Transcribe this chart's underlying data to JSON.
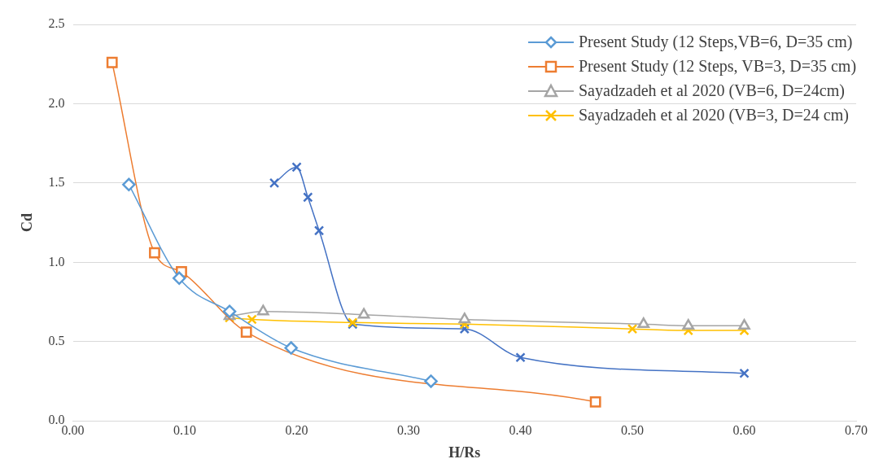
{
  "chart_data": {
    "type": "line",
    "xlabel": "H/Rs",
    "ylabel": "Cd",
    "xlim": [
      0,
      0.7
    ],
    "ylim": [
      0,
      2.5
    ],
    "xticks": [
      {
        "value": 0,
        "label": "0.00"
      },
      {
        "value": 0.1,
        "label": "0.10"
      },
      {
        "value": 0.2,
        "label": "0.20"
      },
      {
        "value": 0.3,
        "label": "0.30"
      },
      {
        "value": 0.4,
        "label": "0.40"
      },
      {
        "value": 0.5,
        "label": "0.50"
      },
      {
        "value": 0.6,
        "label": "0.60"
      },
      {
        "value": 0.7,
        "label": "0.70"
      }
    ],
    "yticks": [
      {
        "value": 0,
        "label": "0.0"
      },
      {
        "value": 0.5,
        "label": "0.5"
      },
      {
        "value": 1,
        "label": "1.0"
      },
      {
        "value": 1.5,
        "label": "1.5"
      },
      {
        "value": 2,
        "label": "2.0"
      },
      {
        "value": 2.5,
        "label": "2.5"
      }
    ],
    "grid": "y",
    "legend": "top right",
    "line_style": "solid",
    "series": [
      {
        "name": "Present Study (12 Steps,VB=6, D=35 cm)",
        "color": "#5b9bd5",
        "marker": "diamond",
        "x": [
          0.05,
          0.095,
          0.14,
          0.195,
          0.32
        ],
        "values": [
          1.49,
          0.9,
          0.69,
          0.46,
          0.25
        ]
      },
      {
        "name": "Present Study (12 Steps, VB=3, D=35 cm)",
        "color": "#ed7d31",
        "marker": "square",
        "x": [
          0.035,
          0.073,
          0.097,
          0.155,
          0.467
        ],
        "values": [
          2.26,
          1.06,
          0.94,
          0.56,
          0.12
        ]
      },
      {
        "name": "Sayadzadeh et al 2020 (VB=6, D=24cm)",
        "color": "#a5a5a5",
        "marker": "triangle",
        "x": [
          0.14,
          0.17,
          0.26,
          0.35,
          0.51,
          0.55,
          0.6
        ],
        "values": [
          0.66,
          0.69,
          0.67,
          0.64,
          0.61,
          0.6,
          0.6
        ]
      },
      {
        "name": "Sayadzadeh et al 2020 (VB=3, D=24 cm)",
        "color": "#ffc000",
        "marker": "cross",
        "x": [
          0.14,
          0.16,
          0.25,
          0.35,
          0.5,
          0.55,
          0.6
        ],
        "values": [
          0.65,
          0.64,
          0.62,
          0.61,
          0.58,
          0.57,
          0.57
        ]
      },
      {
        "color": "#4472c4",
        "marker": "cross",
        "x": [
          0.18,
          0.2,
          0.21,
          0.22,
          0.25,
          0.35,
          0.4,
          0.6
        ],
        "values": [
          1.5,
          1.6,
          1.41,
          1.2,
          0.61,
          0.58,
          0.4,
          0.3
        ]
      }
    ]
  }
}
